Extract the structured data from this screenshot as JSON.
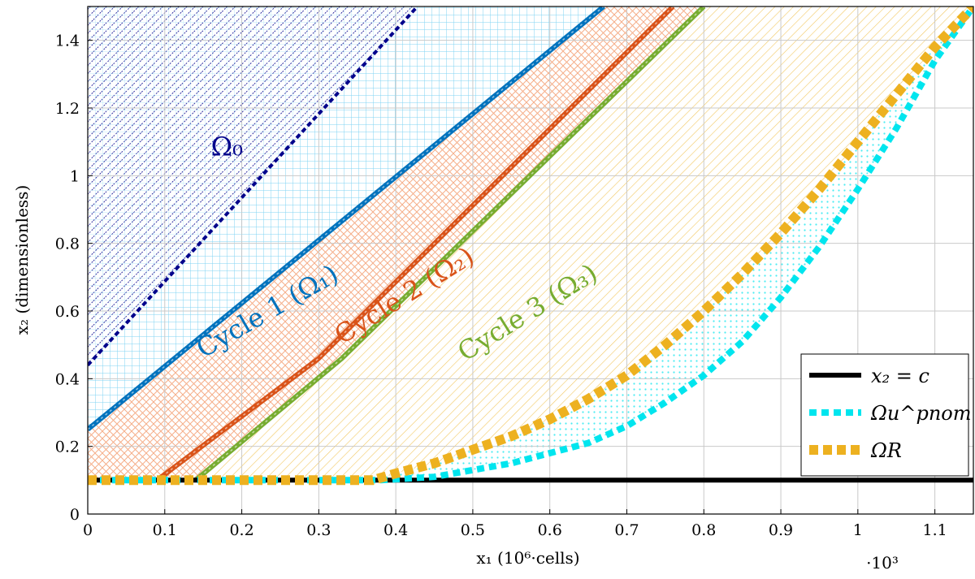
{
  "chart_data": {
    "type": "line",
    "xlabel": "x₁ (10⁶·cells)",
    "ylabel": "x₂ (dimensionless)",
    "x_multiplier": "·10³",
    "xlim": [
      0,
      1.15
    ],
    "ylim": [
      0,
      1.5
    ],
    "x_ticks": [
      0,
      0.1,
      0.2,
      0.3,
      0.4,
      0.5,
      0.6,
      0.7,
      0.8,
      0.9,
      1,
      1.1
    ],
    "x_tick_labels": [
      "0",
      "0.1",
      "0.2",
      "0.3",
      "0.4",
      "0.5",
      "0.6",
      "0.7",
      "0.8",
      "0.9",
      "1",
      "1.1"
    ],
    "y_ticks": [
      0,
      0.2,
      0.4,
      0.6,
      0.8,
      1,
      1.2,
      1.4
    ],
    "y_tick_labels": [
      "0",
      "0.2",
      "0.4",
      "0.6",
      "0.8",
      "1",
      "1.2",
      "1.4"
    ],
    "grid": true,
    "legend_position": "bottom-right",
    "series": [
      {
        "name": "x₂ = c",
        "color": "#000000",
        "style": "solid",
        "x": [
          0,
          1.15
        ],
        "y": [
          0.1,
          0.1
        ]
      },
      {
        "name": "Ωu^pnom",
        "color": "#00e5ee",
        "style": "dotted",
        "x": [
          0,
          0.38,
          0.45,
          0.5,
          0.55,
          0.6,
          0.65,
          0.7,
          0.75,
          0.8,
          0.85,
          0.9,
          0.95,
          1.0,
          1.05,
          1.1,
          1.15
        ],
        "y": [
          0.1,
          0.1,
          0.11,
          0.13,
          0.15,
          0.18,
          0.21,
          0.26,
          0.33,
          0.41,
          0.51,
          0.64,
          0.79,
          0.96,
          1.14,
          1.34,
          1.5
        ]
      },
      {
        "name": "ΩR",
        "color": "#edb120",
        "style": "dashed",
        "x": [
          0,
          0.37,
          0.4,
          0.45,
          0.5,
          0.55,
          0.6,
          0.65,
          0.7,
          0.75,
          0.8,
          0.85,
          0.9,
          0.95,
          1.0,
          1.05,
          1.1,
          1.15
        ],
        "y": [
          0.1,
          0.1,
          0.12,
          0.15,
          0.19,
          0.23,
          0.28,
          0.34,
          0.41,
          0.5,
          0.6,
          0.71,
          0.83,
          0.96,
          1.1,
          1.24,
          1.38,
          1.5
        ]
      }
    ],
    "boundaries": [
      {
        "label": "Ω₀",
        "color": "#00008b",
        "x": [
          0,
          0.42
        ],
        "y": [
          0.44,
          1.48
        ]
      },
      {
        "label": "Cycle 1 (Ω₁)",
        "color": "#0072bd",
        "x": [
          0,
          0.67
        ],
        "y": [
          0.25,
          1.5
        ]
      },
      {
        "label": "Cycle 2 (Ω₂)",
        "color": "#d95319",
        "x": [
          0.09,
          0.3,
          0.76
        ],
        "y": [
          0.1,
          0.46,
          1.5
        ]
      },
      {
        "label": "Cycle 3 (Ω₃)",
        "color": "#77ac30",
        "x": [
          0.14,
          0.33,
          0.8
        ],
        "y": [
          0.1,
          0.46,
          1.5
        ]
      }
    ],
    "region_labels": [
      {
        "text": "Ω₀",
        "color": "#00008b",
        "x": 0.16,
        "y": 1.06,
        "angle": 0
      },
      {
        "text": "Cycle 1 (Ω₁)",
        "color": "#0072bd",
        "x": 0.15,
        "y": 0.46,
        "angle": -30
      },
      {
        "text": "Cycle 2 (Ω₂)",
        "color": "#d95319",
        "x": 0.33,
        "y": 0.5,
        "angle": -32
      },
      {
        "text": "Cycle 3 (Ω₃)",
        "color": "#77ac30",
        "x": 0.49,
        "y": 0.45,
        "angle": -32
      }
    ]
  }
}
